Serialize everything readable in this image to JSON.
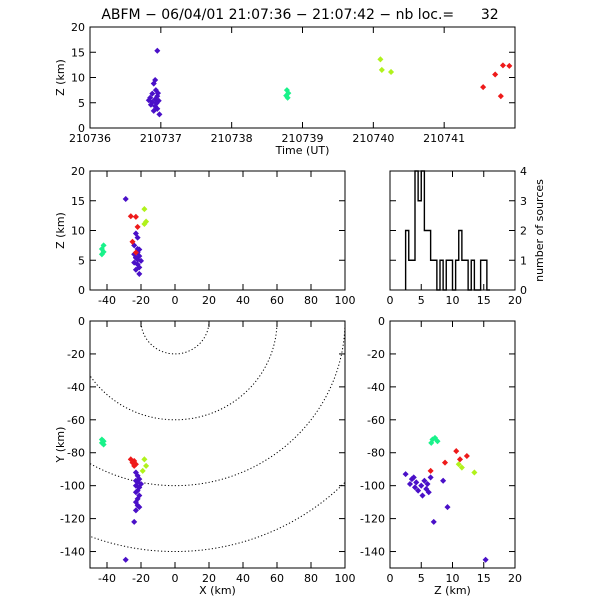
{
  "title": {
    "station": "ABFM",
    "date": "06/04/01",
    "time_range": "21:07:36 − 21:07:42",
    "count_label": "nb loc.=",
    "count_value": "32",
    "text": "ABFM − 06/04/01 21:07:36 − 21:07:42 − nb loc.=      32"
  },
  "colors": {
    "group1": "#4a10c8",
    "group2": "#19f28a",
    "group3": "#b0f21c",
    "group4": "#ee1a1a",
    "axis": "#000000",
    "contour": "#000000"
  },
  "chart_data": [
    {
      "id": "time_height",
      "type": "scatter",
      "title": "ABFM − 06/04/01 21:07:36 − 21:07:42 − nb loc.=      32",
      "xlabel": "Time (UT)",
      "ylabel": "Z (km)",
      "xlim": [
        210736,
        210742
      ],
      "ylim": [
        0,
        20
      ],
      "xticks": [
        210736,
        210737,
        210738,
        210739,
        210740,
        210741
      ],
      "xtick_labels": [
        "210736",
        "210737",
        "210738",
        "210739",
        "210740",
        "210741"
      ],
      "yticks": [
        0,
        5,
        10,
        15,
        20
      ],
      "series": [
        {
          "color": "#4a10c8",
          "marker": "diamond",
          "points": [
            [
              210736.95,
              15.3
            ],
            [
              210736.92,
              9.5
            ],
            [
              210736.9,
              8.8
            ],
            [
              210736.93,
              7.5
            ],
            [
              210736.88,
              6.8
            ],
            [
              210736.95,
              6.3
            ],
            [
              210736.85,
              6.0
            ],
            [
              210736.92,
              5.7
            ],
            [
              210736.97,
              5.4
            ],
            [
              210736.88,
              5.1
            ],
            [
              210736.94,
              4.9
            ],
            [
              210736.86,
              4.6
            ],
            [
              210736.92,
              4.3
            ],
            [
              210736.95,
              3.8
            ],
            [
              210736.9,
              3.4
            ],
            [
              210736.98,
              2.7
            ],
            [
              210736.83,
              5.5
            ],
            [
              210736.96,
              6.9
            ]
          ]
        },
        {
          "color": "#19f28a",
          "marker": "diamond",
          "points": [
            [
              210738.78,
              7.5
            ],
            [
              210738.8,
              6.9
            ],
            [
              210738.77,
              6.4
            ],
            [
              210738.79,
              6.0
            ]
          ]
        },
        {
          "color": "#b0f21c",
          "marker": "diamond",
          "points": [
            [
              210740.1,
              13.6
            ],
            [
              210740.12,
              11.5
            ],
            [
              210740.25,
              11.1
            ]
          ]
        },
        {
          "color": "#ee1a1a",
          "marker": "diamond",
          "points": [
            [
              210741.83,
              12.4
            ],
            [
              210741.92,
              12.3
            ],
            [
              210741.72,
              10.6
            ],
            [
              210741.55,
              8.1
            ],
            [
              210741.8,
              6.3
            ]
          ]
        }
      ]
    },
    {
      "id": "x_height",
      "type": "scatter",
      "xlabel": "",
      "ylabel": "Z (km)",
      "xlim": [
        -50,
        100
      ],
      "ylim": [
        0,
        20
      ],
      "xticks": [
        -40,
        -20,
        0,
        20,
        40,
        60,
        80,
        100
      ],
      "yticks": [
        0,
        5,
        10,
        15,
        20
      ],
      "series": [
        {
          "color": "#4a10c8",
          "marker": "diamond",
          "points": [
            [
              -29,
              15.3
            ],
            [
              -23,
              9.5
            ],
            [
              -22,
              8.8
            ],
            [
              -24,
              7.5
            ],
            [
              -21,
              6.8
            ],
            [
              -22,
              6.3
            ],
            [
              -24,
              6.0
            ],
            [
              -21,
              5.7
            ],
            [
              -23,
              5.4
            ],
            [
              -22,
              5.1
            ],
            [
              -20,
              4.9
            ],
            [
              -24,
              4.6
            ],
            [
              -22,
              4.3
            ],
            [
              -21,
              3.8
            ],
            [
              -23,
              3.4
            ],
            [
              -21,
              2.7
            ],
            [
              -23,
              5.5
            ],
            [
              -22,
              6.9
            ]
          ]
        },
        {
          "color": "#19f28a",
          "marker": "diamond",
          "points": [
            [
              -42,
              7.5
            ],
            [
              -43,
              6.9
            ],
            [
              -42,
              6.4
            ],
            [
              -43,
              6.0
            ]
          ]
        },
        {
          "color": "#b0f21c",
          "marker": "diamond",
          "points": [
            [
              -18,
              13.6
            ],
            [
              -17,
              11.5
            ],
            [
              -18,
              11.1
            ]
          ]
        },
        {
          "color": "#ee1a1a",
          "marker": "diamond",
          "points": [
            [
              -26,
              12.4
            ],
            [
              -23,
              12.3
            ],
            [
              -22,
              10.6
            ],
            [
              -25,
              8.1
            ],
            [
              -23,
              6.3
            ]
          ]
        }
      ]
    },
    {
      "id": "histogram",
      "type": "bar",
      "xlabel": "",
      "ylabel": "number of sources",
      "xlim": [
        0,
        20
      ],
      "ylim": [
        0,
        4
      ],
      "xticks": [
        0,
        5,
        10,
        15,
        20
      ],
      "yticks": [
        0,
        1,
        2,
        3,
        4
      ],
      "bin_width": 0.5,
      "bins": [
        2.5,
        3.0,
        3.5,
        4.0,
        4.5,
        5.0,
        5.5,
        6.0,
        6.5,
        7.0,
        7.5,
        8.0,
        8.5,
        9.0,
        9.5,
        10.0,
        10.5,
        11.0,
        11.5,
        12.0,
        12.5,
        13.0,
        13.5,
        14.0,
        14.5,
        15.0,
        15.5
      ],
      "values": [
        2,
        1,
        1,
        4,
        3,
        4,
        2,
        2,
        1,
        1,
        0,
        1,
        0,
        1,
        1,
        0,
        1,
        2,
        1,
        1,
        0,
        1,
        0,
        0,
        1,
        1,
        0
      ]
    },
    {
      "id": "plan_view",
      "type": "scatter",
      "xlabel": "X (km)",
      "ylabel": "Y (km)",
      "xlim": [
        -50,
        100
      ],
      "ylim": [
        -150,
        0
      ],
      "xticks": [
        -40,
        -20,
        0,
        20,
        40,
        60,
        80,
        100
      ],
      "yticks": [
        0,
        -20,
        -40,
        -60,
        -80,
        -100,
        -120,
        -140
      ],
      "range_rings_km": [
        20,
        60,
        100,
        140
      ],
      "range_ring_center": [
        0,
        0
      ],
      "series": [
        {
          "color": "#4a10c8",
          "marker": "diamond",
          "points": [
            [
              -23,
              -92
            ],
            [
              -22,
              -94
            ],
            [
              -21,
              -96
            ],
            [
              -23,
              -97
            ],
            [
              -22,
              -98
            ],
            [
              -20,
              -99
            ],
            [
              -23,
              -100
            ],
            [
              -21,
              -101
            ],
            [
              -22,
              -103
            ],
            [
              -23,
              -104
            ],
            [
              -21,
              -106
            ],
            [
              -22,
              -108
            ],
            [
              -23,
              -110
            ],
            [
              -22,
              -112
            ],
            [
              -21,
              -113
            ],
            [
              -23,
              -115
            ],
            [
              -24,
              -122
            ],
            [
              -29,
              -145
            ]
          ]
        },
        {
          "color": "#19f28a",
          "marker": "diamond",
          "points": [
            [
              -43,
              -72
            ],
            [
              -42,
              -73
            ],
            [
              -43,
              -74
            ],
            [
              -42,
              -75
            ]
          ]
        },
        {
          "color": "#b0f21c",
          "marker": "diamond",
          "points": [
            [
              -18,
              -84
            ],
            [
              -17,
              -88
            ],
            [
              -19,
              -91
            ]
          ]
        },
        {
          "color": "#ee1a1a",
          "marker": "diamond",
          "points": [
            [
              -26,
              -84
            ],
            [
              -24,
              -85
            ],
            [
              -25,
              -86
            ],
            [
              -23,
              -87
            ],
            [
              -24,
              -88
            ]
          ]
        }
      ]
    },
    {
      "id": "z_y",
      "type": "scatter",
      "xlabel": "Z (km)",
      "ylabel": "",
      "xlim": [
        0,
        20
      ],
      "ylim": [
        -150,
        0
      ],
      "xticks": [
        0,
        5,
        10,
        15,
        20
      ],
      "yticks": [
        0,
        -20,
        -40,
        -60,
        -80,
        -100,
        -120,
        -140
      ],
      "series": [
        {
          "color": "#4a10c8",
          "marker": "diamond",
          "points": [
            [
              2.5,
              -93
            ],
            [
              3.5,
              -96
            ],
            [
              3.2,
              -99
            ],
            [
              3.8,
              -95
            ],
            [
              4.2,
              -98
            ],
            [
              4.0,
              -101
            ],
            [
              4.5,
              -103
            ],
            [
              5.0,
              -100
            ],
            [
              5.5,
              -97
            ],
            [
              5.8,
              -102
            ],
            [
              6.0,
              -99
            ],
            [
              6.5,
              -95
            ],
            [
              5.2,
              -106
            ],
            [
              6.2,
              -104
            ],
            [
              7.0,
              -122
            ],
            [
              9.2,
              -113
            ],
            [
              8.5,
              -97
            ],
            [
              15.3,
              -145
            ]
          ]
        },
        {
          "color": "#19f28a",
          "marker": "diamond",
          "points": [
            [
              6.8,
              -72
            ],
            [
              7.2,
              -71
            ],
            [
              7.6,
              -73
            ],
            [
              6.6,
              -74
            ]
          ]
        },
        {
          "color": "#b0f21c",
          "marker": "diamond",
          "points": [
            [
              11.0,
              -87
            ],
            [
              11.5,
              -89
            ],
            [
              13.5,
              -92
            ]
          ]
        },
        {
          "color": "#ee1a1a",
          "marker": "diamond",
          "points": [
            [
              6.5,
              -91
            ],
            [
              8.8,
              -86
            ],
            [
              10.6,
              -79
            ],
            [
              12.3,
              -82
            ],
            [
              11.2,
              -84
            ]
          ]
        }
      ]
    }
  ]
}
